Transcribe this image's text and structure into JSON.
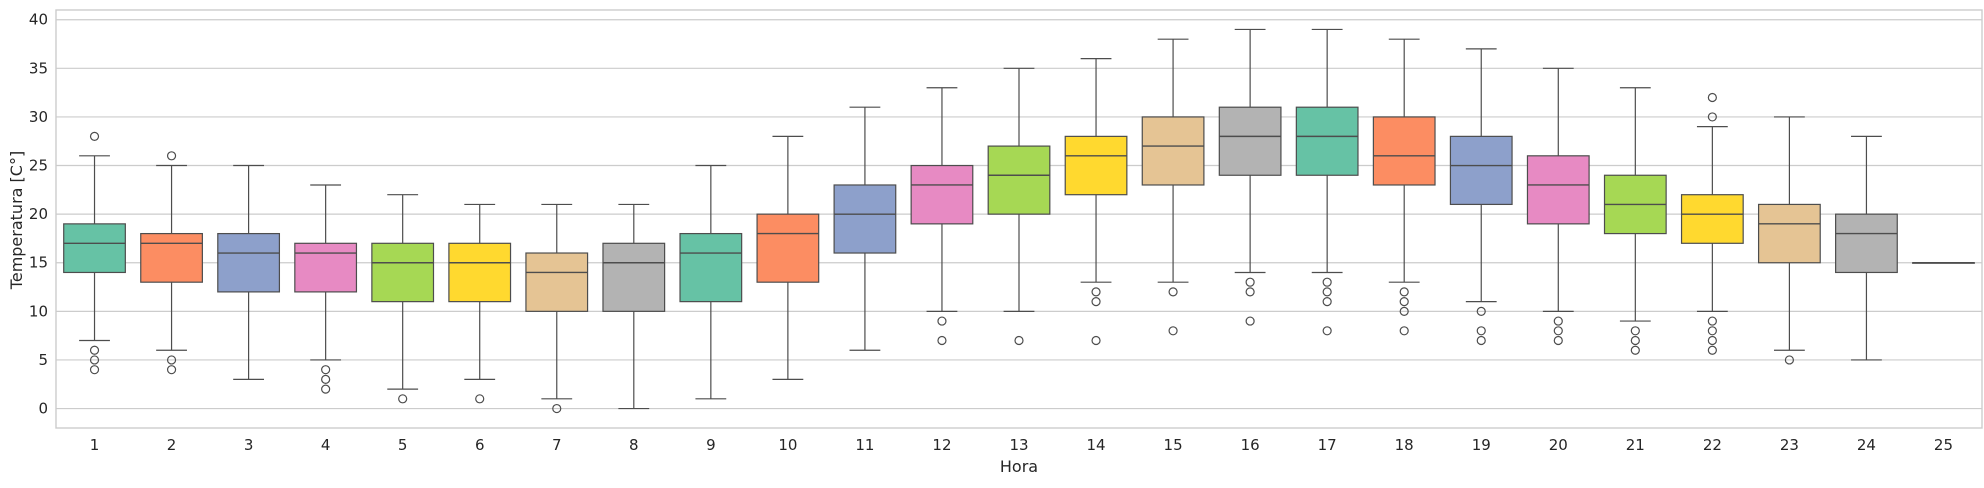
{
  "chart_data": {
    "type": "box",
    "xlabel": "Hora",
    "ylabel": "Temperatura [C°]",
    "ylim": [
      -2,
      41
    ],
    "yticks": [
      0,
      5,
      10,
      15,
      20,
      25,
      30,
      35,
      40
    ],
    "grid": "horizontal",
    "categories": [
      "1",
      "2",
      "3",
      "4",
      "5",
      "6",
      "7",
      "8",
      "9",
      "10",
      "11",
      "12",
      "13",
      "14",
      "15",
      "16",
      "17",
      "18",
      "19",
      "20",
      "21",
      "22",
      "23",
      "24",
      "25"
    ],
    "colors": [
      "#66c2a5",
      "#fc8d62",
      "#8da0cb",
      "#e78ac3",
      "#a6d854",
      "#ffd92f",
      "#e5c494",
      "#b3b3b3",
      "#66c2a5",
      "#fc8d62",
      "#8da0cb",
      "#e78ac3",
      "#a6d854",
      "#ffd92f",
      "#e5c494",
      "#b3b3b3",
      "#66c2a5",
      "#fc8d62",
      "#8da0cb",
      "#e78ac3",
      "#a6d854",
      "#ffd92f",
      "#e5c494",
      "#b3b3b3",
      "#66c2a5"
    ],
    "boxes": [
      {
        "min": 7,
        "q1": 14,
        "median": 17,
        "q3": 19,
        "max": 26,
        "outliers": [
          28,
          6,
          5,
          4
        ]
      },
      {
        "min": 6,
        "q1": 13,
        "median": 17,
        "q3": 18,
        "max": 25,
        "outliers": [
          26,
          5,
          4
        ]
      },
      {
        "min": 3,
        "q1": 12,
        "median": 16,
        "q3": 18,
        "max": 25,
        "outliers": []
      },
      {
        "min": 5,
        "q1": 12,
        "median": 16,
        "q3": 17,
        "max": 23,
        "outliers": [
          4,
          3,
          2
        ]
      },
      {
        "min": 2,
        "q1": 11,
        "median": 15,
        "q3": 17,
        "max": 22,
        "outliers": [
          1
        ]
      },
      {
        "min": 3,
        "q1": 11,
        "median": 15,
        "q3": 17,
        "max": 21,
        "outliers": [
          1
        ]
      },
      {
        "min": 1,
        "q1": 10,
        "median": 14,
        "q3": 16,
        "max": 21,
        "outliers": [
          0
        ]
      },
      {
        "min": 0,
        "q1": 10,
        "median": 15,
        "q3": 17,
        "max": 21,
        "outliers": []
      },
      {
        "min": 1,
        "q1": 11,
        "median": 16,
        "q3": 18,
        "max": 25,
        "outliers": []
      },
      {
        "min": 3,
        "q1": 13,
        "median": 18,
        "q3": 20,
        "max": 28,
        "outliers": []
      },
      {
        "min": 6,
        "q1": 16,
        "median": 20,
        "q3": 23,
        "max": 31,
        "outliers": []
      },
      {
        "min": 10,
        "q1": 19,
        "median": 23,
        "q3": 25,
        "max": 33,
        "outliers": [
          9,
          7
        ]
      },
      {
        "min": 10,
        "q1": 20,
        "median": 24,
        "q3": 27,
        "max": 35,
        "outliers": [
          7
        ]
      },
      {
        "min": 13,
        "q1": 22,
        "median": 26,
        "q3": 28,
        "max": 36,
        "outliers": [
          12,
          11,
          7
        ]
      },
      {
        "min": 13,
        "q1": 23,
        "median": 27,
        "q3": 30,
        "max": 38,
        "outliers": [
          12,
          8
        ]
      },
      {
        "min": 14,
        "q1": 24,
        "median": 28,
        "q3": 31,
        "max": 39,
        "outliers": [
          13,
          12,
          9
        ]
      },
      {
        "min": 14,
        "q1": 24,
        "median": 28,
        "q3": 31,
        "max": 39,
        "outliers": [
          13,
          12,
          11,
          8
        ]
      },
      {
        "min": 13,
        "q1": 23,
        "median": 26,
        "q3": 30,
        "max": 38,
        "outliers": [
          12,
          11,
          10,
          8
        ]
      },
      {
        "min": 11,
        "q1": 21,
        "median": 25,
        "q3": 28,
        "max": 37,
        "outliers": [
          10,
          8,
          7
        ]
      },
      {
        "min": 10,
        "q1": 19,
        "median": 23,
        "q3": 26,
        "max": 35,
        "outliers": [
          9,
          8,
          7
        ]
      },
      {
        "min": 9,
        "q1": 18,
        "median": 21,
        "q3": 24,
        "max": 33,
        "outliers": [
          8,
          7,
          6
        ]
      },
      {
        "min": 10,
        "q1": 17,
        "median": 20,
        "q3": 22,
        "max": 29,
        "outliers": [
          32,
          30,
          9,
          8,
          7,
          6
        ]
      },
      {
        "min": 6,
        "q1": 15,
        "median": 19,
        "q3": 21,
        "max": 30,
        "outliers": [
          5
        ]
      },
      {
        "min": 5,
        "q1": 14,
        "median": 18,
        "q3": 20,
        "max": 28,
        "outliers": []
      },
      {
        "min": 15,
        "q1": 15,
        "median": 15,
        "q3": 15,
        "max": 15,
        "outliers": []
      }
    ]
  }
}
